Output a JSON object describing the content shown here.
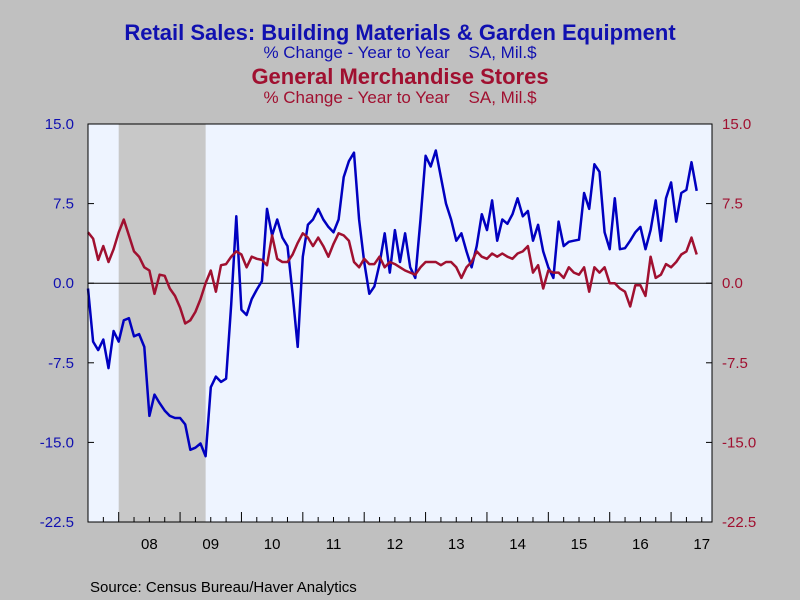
{
  "titles": {
    "series1_title": "Retail Sales: Building Materials & Garden Equipment",
    "series1_sub": "% Change - Year to Year    SA, Mil.$",
    "series2_title": "General Merchandise Stores",
    "series2_sub": "% Change - Year to Year    SA, Mil.$"
  },
  "source": "Source:  Census Bureau/Haver Analytics",
  "colors": {
    "series1": "#0000c0",
    "series2": "#a01030",
    "plot_bg": "#eef4ff",
    "recession": "#c8c8c8",
    "background": "#c0c0c0"
  },
  "chart_data": {
    "type": "line",
    "x_start": "2007-07",
    "frequency": "monthly",
    "xlim": [
      "2007-07",
      "2017-09"
    ],
    "ylim": [
      -22.5,
      15.0
    ],
    "yticks": [
      "15.0",
      "7.5",
      "0.0",
      "-7.5",
      "-15.0",
      "-22.5"
    ],
    "xtick_labels": [
      "08",
      "09",
      "10",
      "11",
      "12",
      "13",
      "14",
      "15",
      "16",
      "17"
    ],
    "grid": false,
    "zero_line": true,
    "recession_shading": [
      "2008-01",
      "2009-06"
    ],
    "series": [
      {
        "name": "Retail Sales: Building Materials & Garden Equipment",
        "axis": "left",
        "color": "#0000c0",
        "values": [
          -0.5,
          -5.5,
          -6.3,
          -5.3,
          -8.0,
          -4.5,
          -5.5,
          -3.5,
          -3.3,
          -5.0,
          -4.8,
          -6.0,
          -12.5,
          -10.5,
          -11.3,
          -12.0,
          -12.5,
          -12.7,
          -12.7,
          -13.3,
          -15.7,
          -15.5,
          -15.1,
          -16.3,
          -9.8,
          -8.8,
          -9.3,
          -9.0,
          -2.0,
          6.3,
          -2.5,
          -3.0,
          -1.5,
          -0.6,
          0.2,
          7.0,
          4.5,
          6.0,
          4.3,
          3.5,
          -1.0,
          -6.0,
          2.5,
          5.5,
          6.0,
          7.0,
          6.0,
          5.3,
          4.8,
          6.0,
          10.0,
          11.5,
          12.3,
          6.0,
          2.0,
          -1.0,
          -0.3,
          1.8,
          4.7,
          1.0,
          5.0,
          2.0,
          4.7,
          1.5,
          0.5,
          6.0,
          12.0,
          11.0,
          12.5,
          10.0,
          7.5,
          6.0,
          4.0,
          4.7,
          3.0,
          1.5,
          3.5,
          6.5,
          5.0,
          7.8,
          4.0,
          6.0,
          5.6,
          6.5,
          8.0,
          6.3,
          6.8,
          4.0,
          5.5,
          3.0,
          1.5,
          0.5,
          5.8,
          3.5,
          3.9,
          4.0,
          4.1,
          8.5,
          7.0,
          11.2,
          10.5,
          4.8,
          3.2,
          8.0,
          3.2,
          3.3,
          4.0,
          4.8,
          5.3,
          3.2,
          5.0,
          7.8,
          4.0,
          8.0,
          9.5,
          5.8,
          8.5,
          8.8,
          11.4,
          8.7
        ]
      },
      {
        "name": "General Merchandise Stores",
        "axis": "right",
        "color": "#a01030",
        "values": [
          4.8,
          4.2,
          2.2,
          3.5,
          2.0,
          3.2,
          4.8,
          6.0,
          4.5,
          3.0,
          2.5,
          1.5,
          1.2,
          -1.0,
          0.8,
          0.7,
          -0.5,
          -1.2,
          -2.3,
          -3.8,
          -3.5,
          -2.7,
          -1.5,
          0.0,
          1.2,
          -0.8,
          1.7,
          1.8,
          2.5,
          3.0,
          2.7,
          1.5,
          2.5,
          2.3,
          2.2,
          1.7,
          4.5,
          2.3,
          2.0,
          2.0,
          2.7,
          3.8,
          4.7,
          4.3,
          3.5,
          4.3,
          3.5,
          2.5,
          3.7,
          4.7,
          4.5,
          4.0,
          2.0,
          1.5,
          2.3,
          1.8,
          1.8,
          2.5,
          1.5,
          2.0,
          1.8,
          1.5,
          1.2,
          1.0,
          0.8,
          1.5,
          2.0,
          2.0,
          2.0,
          1.7,
          2.0,
          2.0,
          1.5,
          0.5,
          1.5,
          2.0,
          3.0,
          2.5,
          2.3,
          2.8,
          2.5,
          2.8,
          2.5,
          2.3,
          2.8,
          3.0,
          3.5,
          1.0,
          1.7,
          -0.5,
          1.2,
          1.0,
          1.0,
          0.5,
          1.5,
          1.0,
          0.8,
          1.5,
          -0.8,
          1.5,
          1.0,
          1.5,
          0.0,
          0.0,
          -0.5,
          -0.8,
          -2.2,
          -0.2,
          -0.2,
          -1.2,
          2.5,
          0.5,
          0.8,
          1.8,
          1.5,
          2.0,
          2.7,
          3.0,
          4.3,
          2.7
        ]
      }
    ]
  }
}
